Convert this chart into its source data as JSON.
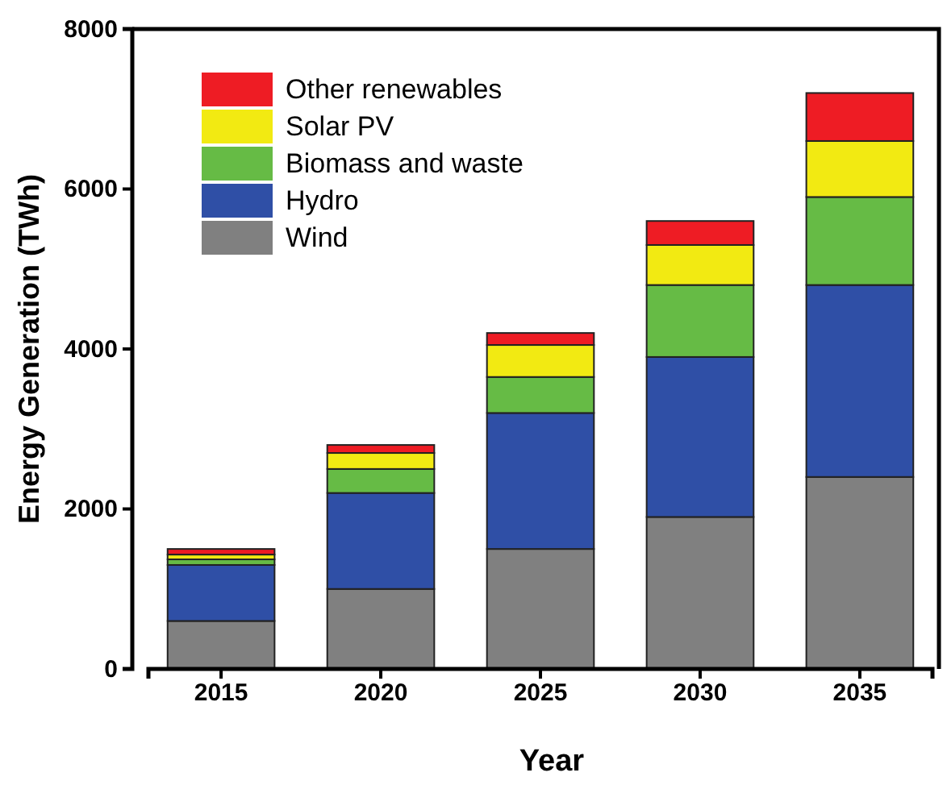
{
  "chart_data": {
    "type": "bar",
    "stacked": true,
    "xlabel": "Year",
    "ylabel": "Energy Generation (TWh)",
    "categories": [
      "2015",
      "2020",
      "2025",
      "2030",
      "2035"
    ],
    "series": [
      {
        "name": "Wind",
        "color": "#808080",
        "values": [
          600,
          1000,
          1500,
          1900,
          2400
        ]
      },
      {
        "name": "Hydro",
        "color": "#2f4fa6",
        "values": [
          700,
          1200,
          1700,
          2000,
          2400
        ]
      },
      {
        "name": "Biomass and waste",
        "color": "#66bb45",
        "values": [
          70,
          300,
          450,
          900,
          1100
        ]
      },
      {
        "name": "Solar PV",
        "color": "#f2ea12",
        "values": [
          60,
          200,
          400,
          500,
          700
        ]
      },
      {
        "name": "Other renewables",
        "color": "#ee1c24",
        "values": [
          70,
          100,
          150,
          300,
          600
        ]
      }
    ],
    "ylim": [
      0,
      8000
    ],
    "yticks": [
      0,
      2000,
      4000,
      6000,
      8000
    ],
    "legend": "top left",
    "grid": false
  }
}
